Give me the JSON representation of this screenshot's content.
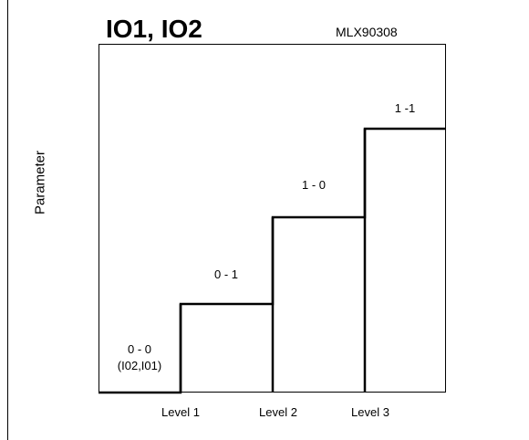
{
  "title": "IO1, IO2",
  "model": "MLX90308",
  "y_axis_label": "Parameter",
  "steps": [
    {
      "code": "0 - 0",
      "note": "(I02,I01)"
    },
    {
      "code": "0 - 1"
    },
    {
      "code": "1 - 0"
    },
    {
      "code": "1 -1"
    }
  ],
  "x_labels": [
    "Level 1",
    "Level 2",
    "Level 3"
  ],
  "colors": {
    "line": "#000000",
    "background": "#ffffff"
  }
}
